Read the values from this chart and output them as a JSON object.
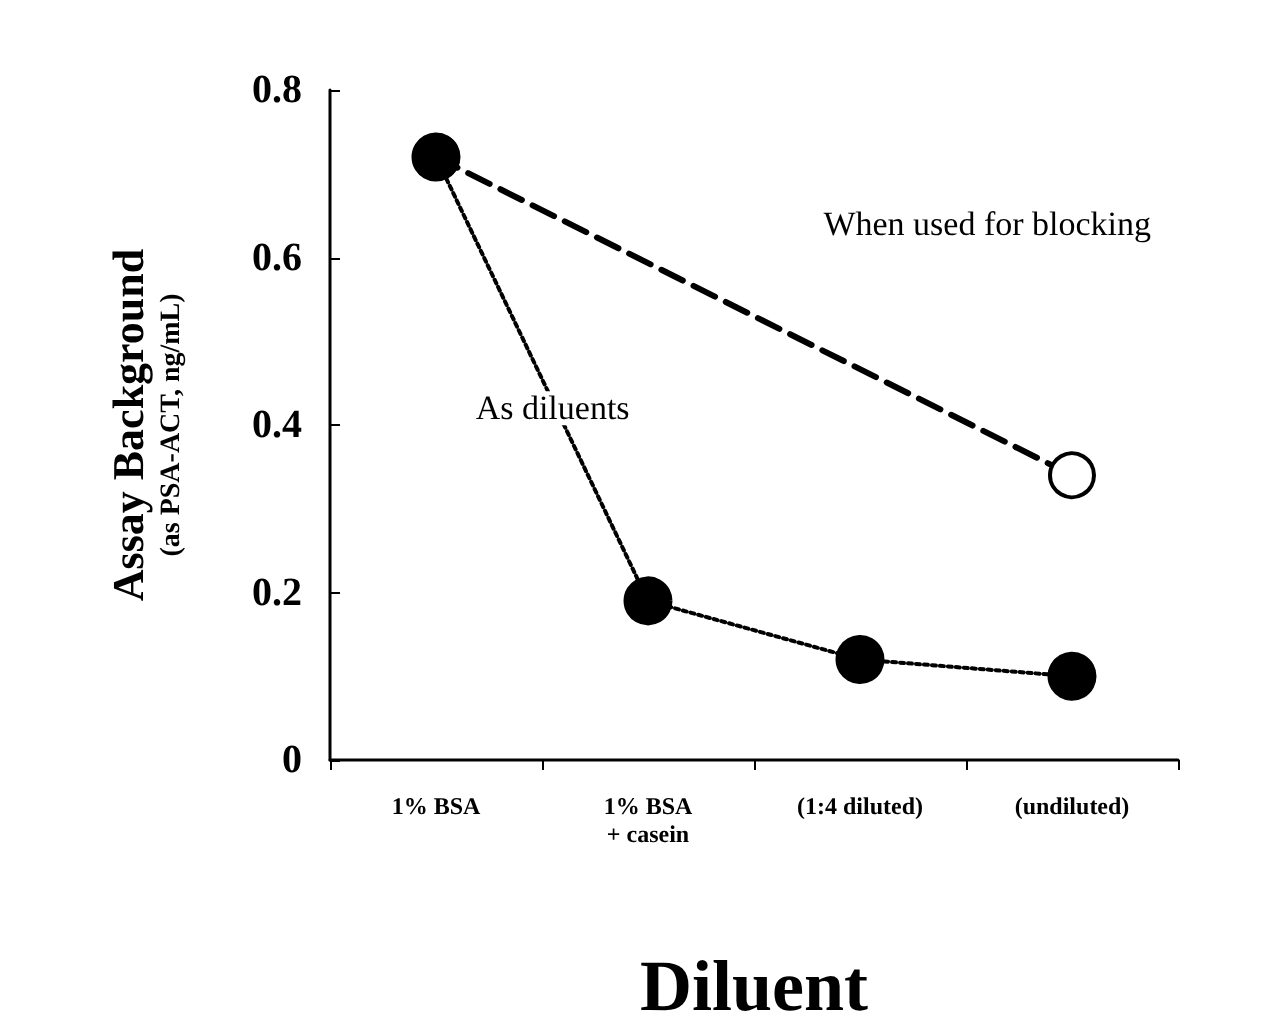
{
  "chart_data": {
    "type": "line",
    "xlabel": "Diluent",
    "ylabel": "Assay Background\n(as PSA-ACT, ng/mL)",
    "categories": [
      "1% BSA",
      "1% BSA\n+ casein",
      "(1:4 diluted)",
      "(undiluted)"
    ],
    "series": [
      {
        "name": "When used for blocking",
        "color": "#000000",
        "values": [
          0.72,
          null,
          null,
          0.34
        ],
        "line_style": "dashed"
      },
      {
        "name": "As diluents",
        "color": "#000000",
        "values": [
          0.72,
          0.19,
          0.12,
          0.1
        ],
        "line_style": "dotted"
      }
    ],
    "ylim": [
      0,
      0.8
    ],
    "yticks": [
      0,
      0.2,
      0.4,
      0.6,
      0.8
    ],
    "grid": false,
    "legend": false,
    "marker": "circle"
  }
}
